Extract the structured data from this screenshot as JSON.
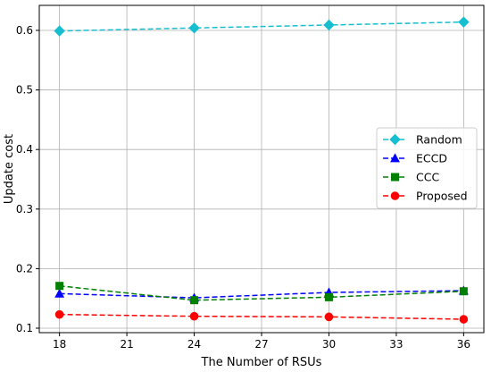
{
  "chart_data": {
    "type": "line",
    "title": "",
    "xlabel": "The Number of RSUs",
    "ylabel": "Update cost",
    "xlim": [
      17.1,
      36.9
    ],
    "ylim": [
      0.0925,
      0.642
    ],
    "xticks": [
      18,
      21,
      24,
      27,
      30,
      33,
      36
    ],
    "yticks": [
      0.1,
      0.2,
      0.3,
      0.4,
      0.5,
      0.6
    ],
    "ytick_labels": [
      "0.1",
      "0.2",
      "0.3",
      "0.4",
      "0.5",
      "0.6"
    ],
    "grid": true,
    "legend_position": "center-right",
    "x": [
      18,
      24,
      30,
      36
    ],
    "series": [
      {
        "name": "Random",
        "values": [
          0.599,
          0.604,
          0.609,
          0.614
        ],
        "color": "#17becf",
        "marker": "diamond",
        "linestyle": "dashed"
      },
      {
        "name": "ECCD",
        "values": [
          0.158,
          0.151,
          0.16,
          0.163
        ],
        "color": "#0000ff",
        "marker": "triangle",
        "linestyle": "dashed"
      },
      {
        "name": "CCC",
        "values": [
          0.171,
          0.147,
          0.152,
          0.162
        ],
        "color": "#008000",
        "marker": "square",
        "linestyle": "dashed"
      },
      {
        "name": "Proposed",
        "values": [
          0.123,
          0.12,
          0.119,
          0.115
        ],
        "color": "#ff0000",
        "marker": "circle",
        "linestyle": "dashed"
      }
    ]
  }
}
